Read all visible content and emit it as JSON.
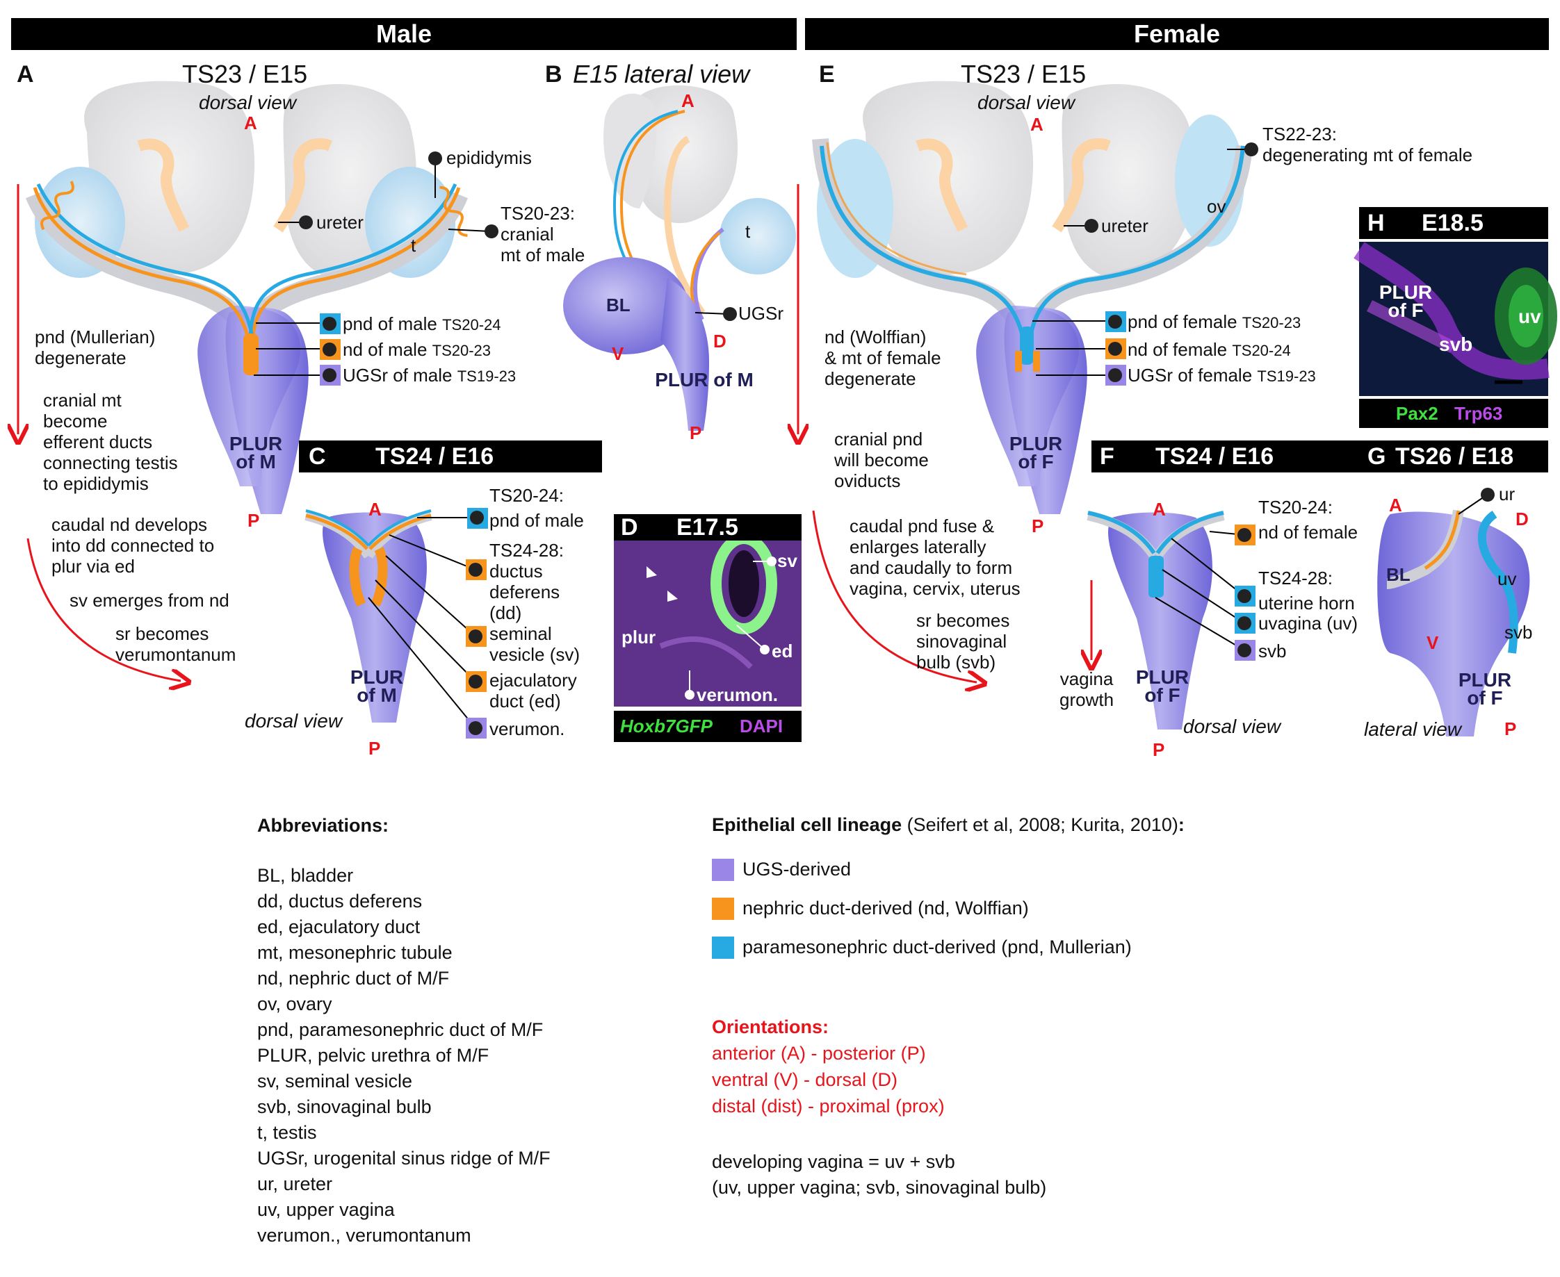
{
  "headers": {
    "male": "Male",
    "female": "Female"
  },
  "panelA": {
    "letter": "A",
    "title": "TS23 / E15",
    "view": "dorsal view",
    "labels": {
      "epididymis": "epididymis",
      "ureter": "ureter",
      "t": "t",
      "cranial_mt": "TS20-23:\ncranial\nmt of male",
      "pnd": "pnd of male",
      "pnd_ts": "TS20-24",
      "nd": "nd of male",
      "nd_ts": "TS20-23",
      "ugsr": "UGSr of male",
      "ugsr_ts": "TS19-23",
      "plur": "PLUR\nof M"
    },
    "notes": {
      "n1": "pnd (Mullerian)\ndegenerate",
      "n2": "cranial mt\nbecome\nefferent ducts\nconnecting testis\nto epididymis",
      "n3": "caudal nd develops\ninto dd connected to\nplur via ed",
      "n4": "sv emerges from nd",
      "n5": "sr becomes\nverumontanum"
    },
    "ori": {
      "A": "A",
      "P": "P"
    }
  },
  "panelB": {
    "letter": "B",
    "title": "E15 lateral view",
    "labels": {
      "t": "t",
      "BL": "BL",
      "ugsr": "UGSr",
      "plur": "PLUR of M"
    },
    "ori": {
      "A": "A",
      "V": "V",
      "D": "D",
      "P": "P"
    }
  },
  "panelC": {
    "letter": "C",
    "title": "TS24 / E16",
    "view": "dorsal view",
    "labels": {
      "pnd": "TS20-24:\npnd of male",
      "dd": "TS24-28:\nductus\ndeferens\n(dd)",
      "sv": "seminal\nvesicle (sv)",
      "ed": "ejaculatory\nduct (ed)",
      "verumon": "verumon.",
      "plur": "PLUR\nof M"
    },
    "ori": {
      "A": "A",
      "P": "P"
    }
  },
  "panelD": {
    "letter": "D",
    "title": "E17.5",
    "labels": {
      "sv": "sv",
      "plur": "plur",
      "ed": "ed",
      "verumon": "verumon."
    },
    "stain": {
      "green": "Hoxb7GFP",
      "magenta": "DAPI"
    }
  },
  "panelE": {
    "letter": "E",
    "title": "TS23 / E15",
    "view": "dorsal view",
    "labels": {
      "degmt": "TS22-23:\ndegenerating mt of female",
      "ureter": "ureter",
      "ov": "ov",
      "pnd": "pnd of female",
      "pnd_ts": "TS20-23",
      "nd": "nd of female",
      "nd_ts": "TS20-24",
      "ugsr": "UGSr of female",
      "ugsr_ts": "TS19-23",
      "plur": "PLUR\nof F"
    },
    "notes": {
      "n1": "nd (Wolffian)\n& mt of female\ndegenerate",
      "n2": "cranial pnd\nwill become\noviducts",
      "n3": "caudal pnd fuse &\nenlarges laterally\nand caudally to form\nvagina, cervix, uterus",
      "n4": "sr becomes\nsinovaginal\nbulb (svb)"
    },
    "ori": {
      "A": "A",
      "P": "P"
    }
  },
  "panelF": {
    "letter": "F",
    "title": "TS24 / E16",
    "view": "dorsal view",
    "labels": {
      "nd": "TS20-24:\nnd of female",
      "horn": "TS24-28:\nuterine horn",
      "uv": "uvagina (uv)",
      "svb": "svb",
      "growth": "vagina\ngrowth",
      "plur": "PLUR\nof F"
    },
    "ori": {
      "A": "A",
      "P": "P"
    }
  },
  "panelG": {
    "letter": "G",
    "title": "TS26 / E18",
    "view": "lateral view",
    "labels": {
      "ur": "ur",
      "BL": "BL",
      "uv": "uv",
      "svb": "svb",
      "plur": "PLUR\nof F"
    },
    "ori": {
      "A": "A",
      "D": "D",
      "V": "V",
      "P": "P"
    }
  },
  "panelH": {
    "letter": "H",
    "title": "E18.5",
    "labels": {
      "plur": "PLUR\nof F",
      "svb": "svb",
      "uv": "uv"
    },
    "stain": {
      "green": "Pax2",
      "magenta": "Trp63"
    }
  },
  "abbreviations": {
    "heading": "Abbreviations:",
    "items": [
      "BL, bladder",
      "dd, ductus deferens",
      "ed, ejaculatory duct",
      "mt, mesonephric tubule",
      "nd, nephric duct of M/F",
      "ov, ovary",
      "pnd, paramesonephric duct of M/F",
      "PLUR, pelvic urethra of M/F",
      "sv, seminal vesicle",
      "svb, sinovaginal bulb",
      "t, testis",
      "UGSr, urogenital sinus ridge of M/F",
      "ur, ureter",
      "uv, upper vagina",
      "verumon., verumontanum"
    ]
  },
  "lineage": {
    "heading": "Epithelial cell lineage",
    "citation": " (Seifert et al, 2008; Kurita, 2010)",
    "colon": ":",
    "items": [
      {
        "label": "UGS-derived",
        "color": "#9a86e6"
      },
      {
        "label": "nephric duct-derived (nd, Wolffian)",
        "color": "#f7941d"
      },
      {
        "label": "paramesonephric duct-derived (pnd, Mullerian)",
        "color": "#27aae1"
      }
    ]
  },
  "orientations": {
    "heading": "Orientations:",
    "items": [
      "anterior (A) - posterior (P)",
      "ventral (V) - dorsal (D)",
      "distal (dist) - proximal (prox)"
    ]
  },
  "vagina_note": "developing vagina = uv + svb\n(uv, upper vagina; svb, sinovaginal bulb)",
  "colors": {
    "ugs": "#9a86e6",
    "nd": "#f7941d",
    "pnd": "#27aae1",
    "orient": "#e8141c",
    "kidney": "#e8e8ea"
  }
}
